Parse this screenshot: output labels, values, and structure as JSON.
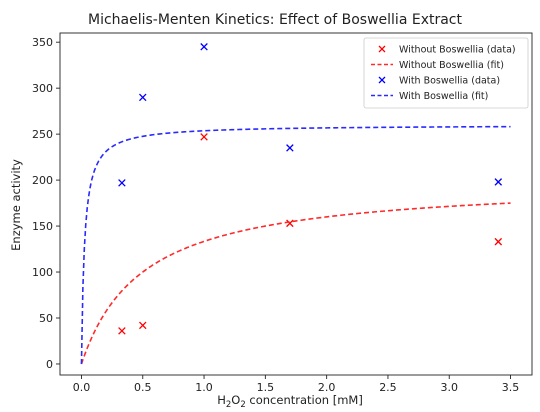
{
  "chart_data": {
    "type": "scatter",
    "title": "Michaelis-Menten Kinetics: Effect of Boswellia Extract",
    "xlabel_base": "H",
    "xlabel_sub1": "2",
    "xlabel_mid": "O",
    "xlabel_sub2": "2",
    "xlabel_rest": " concentration [mM]",
    "ylabel": "Enzyme activity",
    "xlim": [
      -0.175,
      3.675
    ],
    "ylim": [
      -12,
      360
    ],
    "xticks": [
      0.0,
      0.5,
      1.0,
      1.5,
      2.0,
      2.5,
      3.0,
      3.5
    ],
    "xtick_labels": [
      "0.0",
      "0.5",
      "1.0",
      "1.5",
      "2.0",
      "2.5",
      "3.0",
      "3.5"
    ],
    "yticks": [
      0,
      50,
      100,
      150,
      200,
      250,
      300,
      350
    ],
    "ytick_labels": [
      "0",
      "50",
      "100",
      "150",
      "200",
      "250",
      "300",
      "350"
    ],
    "grid": false,
    "legend_position": "top-right",
    "series": [
      {
        "name": "Without Boswellia (data)",
        "kind": "scatter",
        "marker": "x",
        "color": "#ff0000",
        "x": [
          0.33,
          0.5,
          1.0,
          1.7,
          3.4
        ],
        "y": [
          36,
          42,
          247,
          153,
          133
        ]
      },
      {
        "name": "Without Boswellia (fit)",
        "kind": "line",
        "style": "dashed",
        "color": "#ff2a2a",
        "vmax": 200,
        "km": 0.5,
        "x_range": [
          0,
          3.5
        ]
      },
      {
        "name": "With Boswellia (data)",
        "kind": "scatter",
        "marker": "x",
        "color": "#0000ff",
        "x": [
          0.33,
          0.5,
          1.0,
          1.7,
          3.4
        ],
        "y": [
          197,
          290,
          345,
          235,
          198
        ]
      },
      {
        "name": "With Boswellia (fit)",
        "kind": "line",
        "style": "dashed",
        "color": "#2a2aff",
        "vmax": 260,
        "km": 0.025,
        "x_range": [
          0,
          3.5
        ]
      }
    ]
  }
}
